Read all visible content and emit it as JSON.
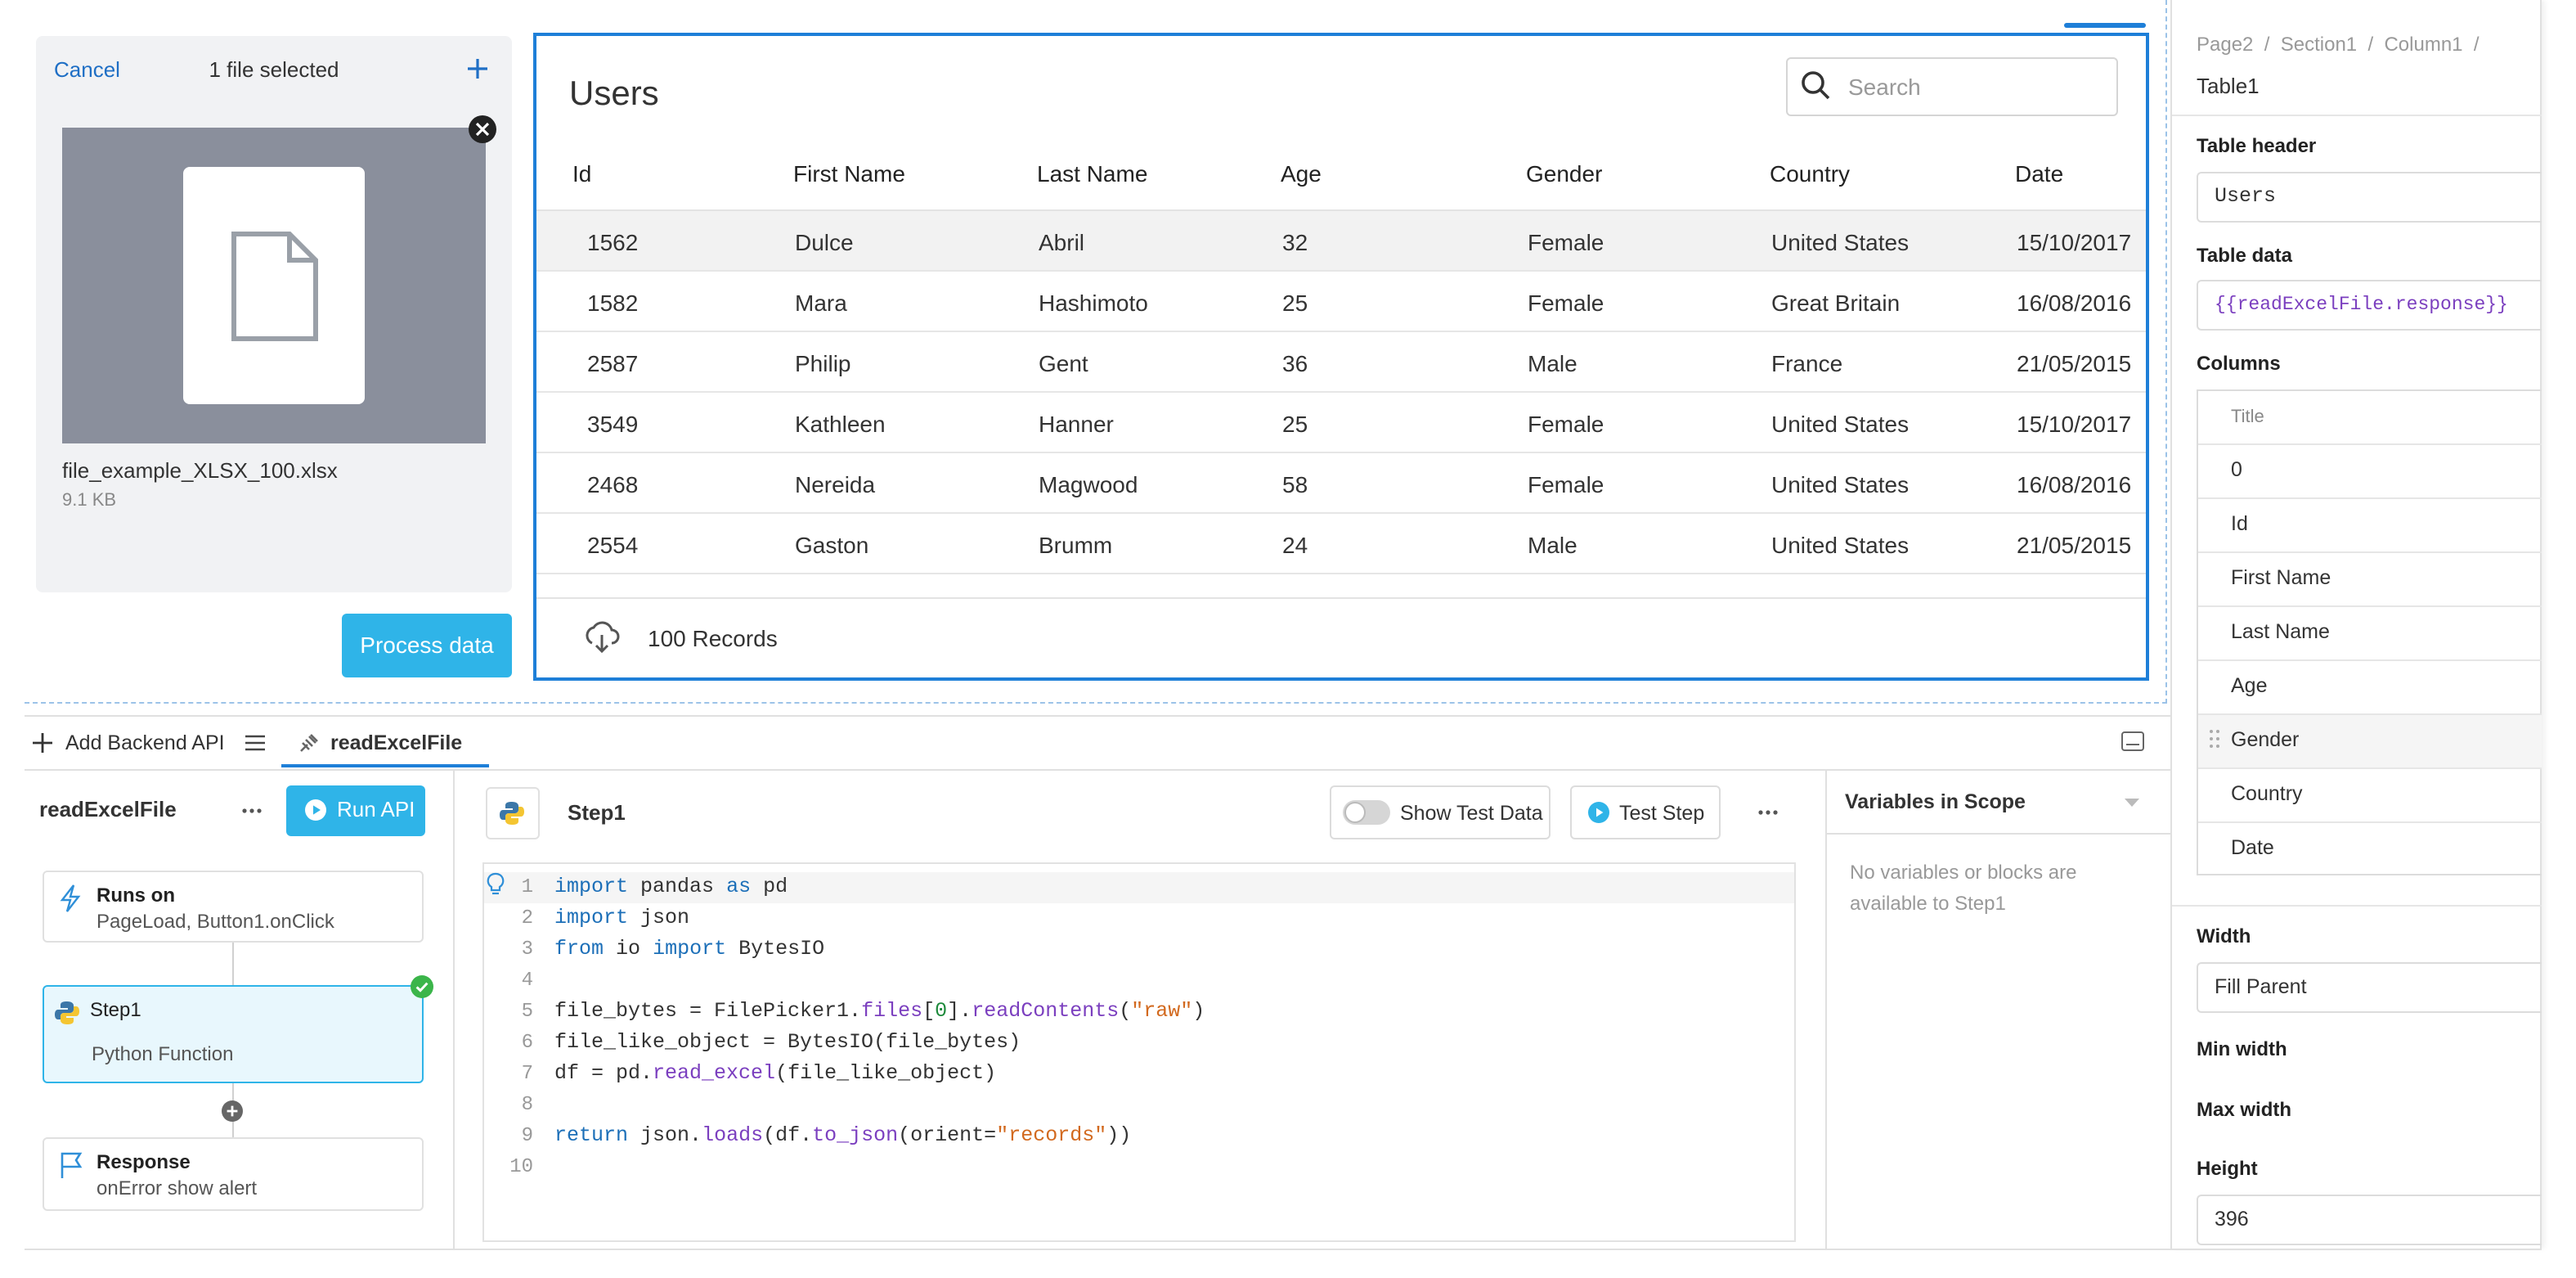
{
  "file_picker": {
    "cancel": "Cancel",
    "status": "1 file selected",
    "file_name": "file_example_XLSX_100.xlsx",
    "file_size": "9.1 KB",
    "button": "Process data"
  },
  "table": {
    "title": "Users",
    "search_placeholder": "Search",
    "columns": [
      "Id",
      "First Name",
      "Last Name",
      "Age",
      "Gender",
      "Country",
      "Date"
    ],
    "rows": [
      [
        "1562",
        "Dulce",
        "Abril",
        "32",
        "Female",
        "United States",
        "15/10/2017"
      ],
      [
        "1582",
        "Mara",
        "Hashimoto",
        "25",
        "Female",
        "Great Britain",
        "16/08/2016"
      ],
      [
        "2587",
        "Philip",
        "Gent",
        "36",
        "Male",
        "France",
        "21/05/2015"
      ],
      [
        "3549",
        "Kathleen",
        "Hanner",
        "25",
        "Female",
        "United States",
        "15/10/2017"
      ],
      [
        "2468",
        "Nereida",
        "Magwood",
        "58",
        "Female",
        "United States",
        "16/08/2016"
      ],
      [
        "2554",
        "Gaston",
        "Brumm",
        "24",
        "Male",
        "United States",
        "21/05/2015"
      ]
    ],
    "footer": "100 Records"
  },
  "tabs": {
    "add_api": "Add Backend API",
    "active": "readExcelFile"
  },
  "flow": {
    "name": "readExcelFile",
    "run": "Run API",
    "nodes": [
      {
        "title": "Runs on",
        "subtitle": "PageLoad, Button1.onClick"
      },
      {
        "title": "Step1",
        "subtitle": "Python Function"
      },
      {
        "title": "Response",
        "subtitle": "onError show alert"
      }
    ]
  },
  "editor": {
    "step": "Step1",
    "show_test_data": "Show Test Data",
    "test_step": "Test Step",
    "line_numbers": [
      "1",
      "2",
      "3",
      "4",
      "5",
      "6",
      "7",
      "8",
      "9",
      "10"
    ],
    "lines": [
      [
        {
          "text": "import",
          "color": "#1c6fb8"
        },
        {
          "text": " pandas ",
          "color": "#333333"
        },
        {
          "text": "as",
          "color": "#1c6fb8"
        },
        {
          "text": " pd",
          "color": "#333333"
        }
      ],
      [
        {
          "text": "import",
          "color": "#1c6fb8"
        },
        {
          "text": " json",
          "color": "#333333"
        }
      ],
      [
        {
          "text": "from",
          "color": "#1c6fb8"
        },
        {
          "text": " io ",
          "color": "#333333"
        },
        {
          "text": "import",
          "color": "#1c6fb8"
        },
        {
          "text": " BytesIO",
          "color": "#333333"
        }
      ],
      [],
      [
        {
          "text": "file_bytes = FilePicker1.",
          "color": "#333333"
        },
        {
          "text": "files",
          "color": "#7b3fbf"
        },
        {
          "text": "[",
          "color": "#333333"
        },
        {
          "text": "0",
          "color": "#1e8a3c"
        },
        {
          "text": "].",
          "color": "#333333"
        },
        {
          "text": "readContents",
          "color": "#7b3fbf"
        },
        {
          "text": "(",
          "color": "#333333"
        },
        {
          "text": "\"raw\"",
          "color": "#d2691e"
        },
        {
          "text": ")",
          "color": "#333333"
        }
      ],
      [
        {
          "text": "file_like_object = BytesIO(file_bytes)",
          "color": "#333333"
        }
      ],
      [
        {
          "text": "df = pd.",
          "color": "#333333"
        },
        {
          "text": "read_excel",
          "color": "#7b3fbf"
        },
        {
          "text": "(file_like_object)",
          "color": "#333333"
        }
      ],
      [],
      [
        {
          "text": "return",
          "color": "#1c6fb8"
        },
        {
          "text": " json.",
          "color": "#333333"
        },
        {
          "text": "loads",
          "color": "#7b3fbf"
        },
        {
          "text": "(df.",
          "color": "#333333"
        },
        {
          "text": "to_json",
          "color": "#7b3fbf"
        },
        {
          "text": "(orient=",
          "color": "#333333"
        },
        {
          "text": "\"records\"",
          "color": "#d2691e"
        },
        {
          "text": "))",
          "color": "#333333"
        }
      ],
      []
    ]
  },
  "variables": {
    "title": "Variables in Scope",
    "empty": "No variables or blocks are available to Step1"
  },
  "properties": {
    "breadcrumb": "Page2  /  Section1  /  Column1  /",
    "widget": "Table1",
    "table_header_label": "Table header",
    "table_header": "Users",
    "table_data_label": "Table data",
    "table_data": "{{readExcelFile.response}}",
    "columns_label": "Columns",
    "columns_header": "Title",
    "columns": [
      "0",
      "Id",
      "First Name",
      "Last Name",
      "Age",
      "Gender",
      "Country",
      "Date"
    ],
    "width_label": "Width",
    "width": "Fill Parent",
    "min_width_label": "Min width",
    "max_width_label": "Max width",
    "height_label": "Height",
    "height": "396"
  }
}
